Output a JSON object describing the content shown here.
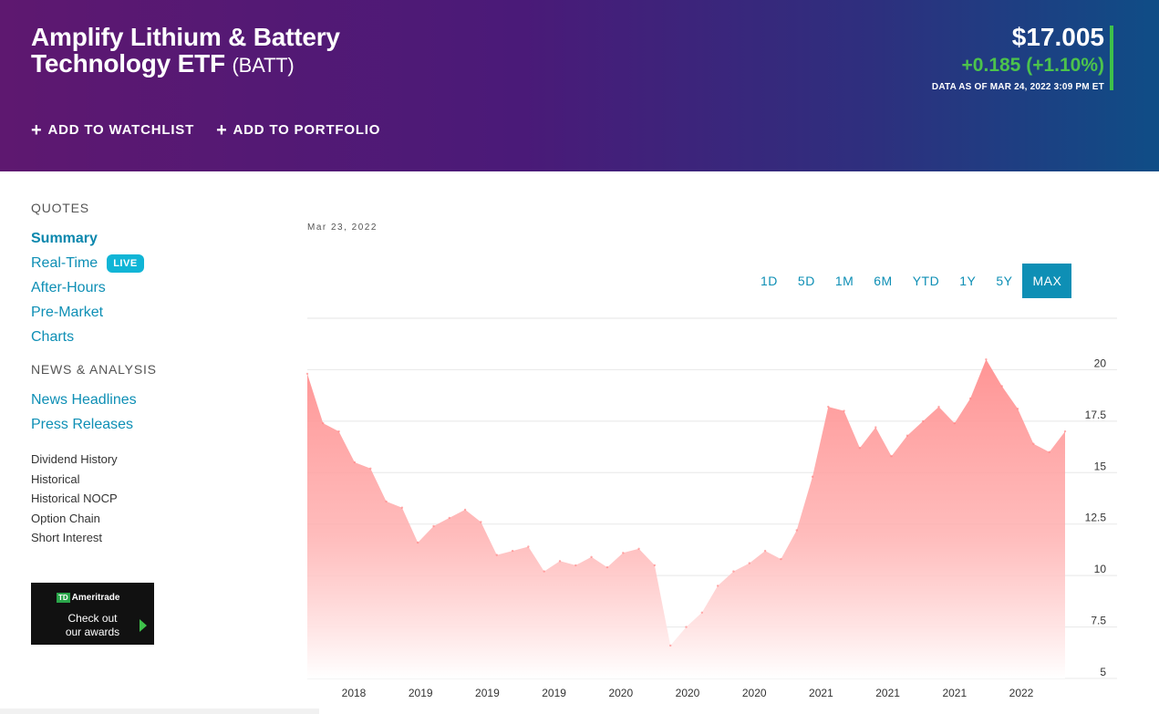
{
  "header": {
    "name": "Amplify Lithium & Battery Technology ETF",
    "ticker": "(BATT)",
    "price": "$17.005",
    "change": "+0.185 (+1.10%)",
    "as_of": "DATA AS OF MAR 24, 2022 3:09 PM ET",
    "add_watchlist": "ADD TO WATCHLIST",
    "add_portfolio": "ADD TO PORTFOLIO",
    "accent_color": "#3ec14a"
  },
  "sidebar": {
    "quotes_heading": "QUOTES",
    "quotes_links": [
      "Summary",
      "Real-Time",
      "After-Hours",
      "Pre-Market",
      "Charts"
    ],
    "live_badge": "LIVE",
    "news_heading": "NEWS & ANALYSIS",
    "news_links": [
      "News Headlines",
      "Press Releases"
    ],
    "small_links": [
      "Dividend History",
      "Historical",
      "Historical NOCP",
      "Option Chain",
      "Short Interest"
    ],
    "ad": {
      "brand": "Ameritrade",
      "logo_mark": "TD",
      "line1": "Check out",
      "line2": "our awards"
    }
  },
  "chart": {
    "date_label": "Mar 23, 2022",
    "ranges": [
      "1D",
      "5D",
      "1M",
      "6M",
      "YTD",
      "1Y",
      "5Y",
      "MAX"
    ],
    "active_range": "MAX"
  },
  "chart_data": {
    "type": "area",
    "color": "#ff8f8f",
    "ylim": [
      5,
      22.5
    ],
    "y_ticks": [
      5,
      7.5,
      10,
      12.5,
      15,
      17.5,
      20
    ],
    "x_tick_labels": [
      "2018",
      "2019",
      "2019",
      "2019",
      "2020",
      "2020",
      "2020",
      "2021",
      "2021",
      "2021",
      "2022"
    ],
    "grid": true,
    "series": [
      {
        "x": [
          "2018-03",
          "2018-04",
          "2018-05",
          "2018-06",
          "2018-07",
          "2018-08",
          "2018-09",
          "2018-10",
          "2018-11",
          "2018-12",
          "2019-01",
          "2019-02",
          "2019-03",
          "2019-04",
          "2019-05",
          "2019-06",
          "2019-07",
          "2019-08",
          "2019-09",
          "2019-10",
          "2019-11",
          "2019-12",
          "2020-01",
          "2020-02",
          "2020-03",
          "2020-04",
          "2020-05",
          "2020-06",
          "2020-07",
          "2020-08",
          "2020-09",
          "2020-10",
          "2020-11",
          "2020-12",
          "2021-01",
          "2021-02",
          "2021-03",
          "2021-04",
          "2021-05",
          "2021-06",
          "2021-07",
          "2021-08",
          "2021-09",
          "2021-10",
          "2021-11",
          "2021-12",
          "2022-01",
          "2022-02",
          "2022-03"
        ],
        "values": [
          19.8,
          17.4,
          17.0,
          15.5,
          15.2,
          13.6,
          13.3,
          11.6,
          12.4,
          12.8,
          13.2,
          12.6,
          11.0,
          11.2,
          11.4,
          10.2,
          10.7,
          10.5,
          10.9,
          10.4,
          11.1,
          11.3,
          10.5,
          6.6,
          7.5,
          8.2,
          9.5,
          10.2,
          10.6,
          11.2,
          10.8,
          12.2,
          14.8,
          18.2,
          18.0,
          16.2,
          17.2,
          15.8,
          16.8,
          17.5,
          18.2,
          17.4,
          18.6,
          20.5,
          19.2,
          18.1,
          16.4,
          16.0,
          17.0
        ]
      }
    ]
  }
}
